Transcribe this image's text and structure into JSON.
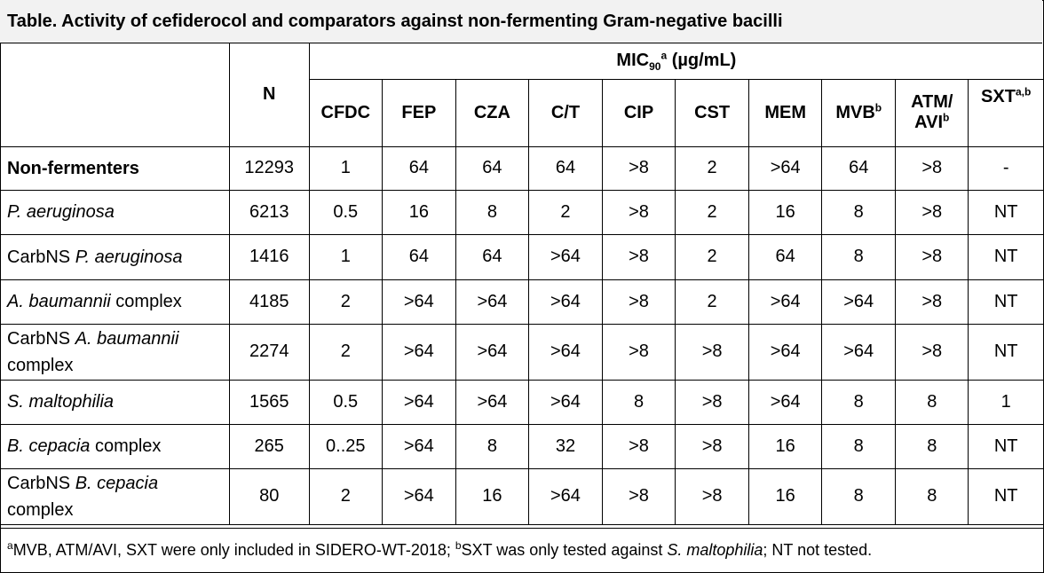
{
  "title": "Table. Activity of cefiderocol and comparators against non-fermenting Gram-negative bacilli",
  "header": {
    "n_label": "N",
    "mic_label_main": "MIC",
    "mic_label_sub": "90",
    "mic_label_sup": "a",
    "mic_label_unit": " (µg/mL)",
    "columns": [
      {
        "label": "CFDC",
        "sup": ""
      },
      {
        "label": "FEP",
        "sup": ""
      },
      {
        "label": "CZA",
        "sup": ""
      },
      {
        "label": "C/T",
        "sup": ""
      },
      {
        "label": "CIP",
        "sup": ""
      },
      {
        "label": "CST",
        "sup": ""
      },
      {
        "label": "MEM",
        "sup": ""
      },
      {
        "label": "MVB",
        "sup": "b"
      },
      {
        "label": "ATM/",
        "label2": "AVI",
        "sup": "b"
      },
      {
        "label": "SXT",
        "sup": "a,b"
      }
    ]
  },
  "rows": [
    {
      "pre": "Non-fermenters",
      "italic": "",
      "post": "",
      "line2": "",
      "n": "12293",
      "values": [
        "1",
        "64",
        "64",
        "64",
        ">8",
        "2",
        ">64",
        "64",
        ">8",
        "-"
      ]
    },
    {
      "pre": "",
      "italic": "P. aeruginosa",
      "post": "",
      "line2": "",
      "n": "6213",
      "values": [
        "0.5",
        "16",
        "8",
        "2",
        ">8",
        "2",
        "16",
        "8",
        ">8",
        "NT"
      ]
    },
    {
      "pre": "CarbNS ",
      "italic": "P. aeruginosa",
      "post": "",
      "line2": "",
      "n": "1416",
      "values": [
        "1",
        "64",
        "64",
        ">64",
        ">8",
        "2",
        "64",
        "8",
        ">8",
        "NT"
      ]
    },
    {
      "pre": "",
      "italic": "A. baumannii",
      "post": " complex",
      "line2": "",
      "n": "4185",
      "values": [
        "2",
        ">64",
        ">64",
        ">64",
        ">8",
        "2",
        ">64",
        ">64",
        ">8",
        "NT"
      ]
    },
    {
      "pre": "CarbNS ",
      "italic": "A. baumannii",
      "post": "",
      "line2": "complex",
      "n": "2274",
      "values": [
        "2",
        ">64",
        ">64",
        ">64",
        ">8",
        ">8",
        ">64",
        ">64",
        ">8",
        "NT"
      ]
    },
    {
      "pre": "",
      "italic": "S. maltophilia",
      "post": "",
      "line2": "",
      "n": "1565",
      "values": [
        "0.5",
        ">64",
        ">64",
        ">64",
        "8",
        ">8",
        ">64",
        "8",
        "8",
        "1"
      ]
    },
    {
      "pre": "",
      "italic": "B. cepacia",
      "post": " complex",
      "line2": "",
      "n": "265",
      "values": [
        "0..25",
        ">64",
        "8",
        "32",
        ">8",
        ">8",
        "16",
        "8",
        "8",
        "NT"
      ]
    },
    {
      "pre": "CarbNS ",
      "italic": "B. cepacia",
      "post": "",
      "line2": "complex",
      "n": "80",
      "values": [
        "2",
        ">64",
        "16",
        ">64",
        ">8",
        ">8",
        "16",
        "8",
        "8",
        "NT"
      ]
    }
  ],
  "footnote": {
    "sup_a": "a",
    "part1": "MVB, ATM/AVI, SXT were only included in SIDERO-WT-2018; ",
    "sup_b": "b",
    "part2": "SXT was only tested against ",
    "italic": "S. maltophilia",
    "part3": "; NT not tested."
  }
}
